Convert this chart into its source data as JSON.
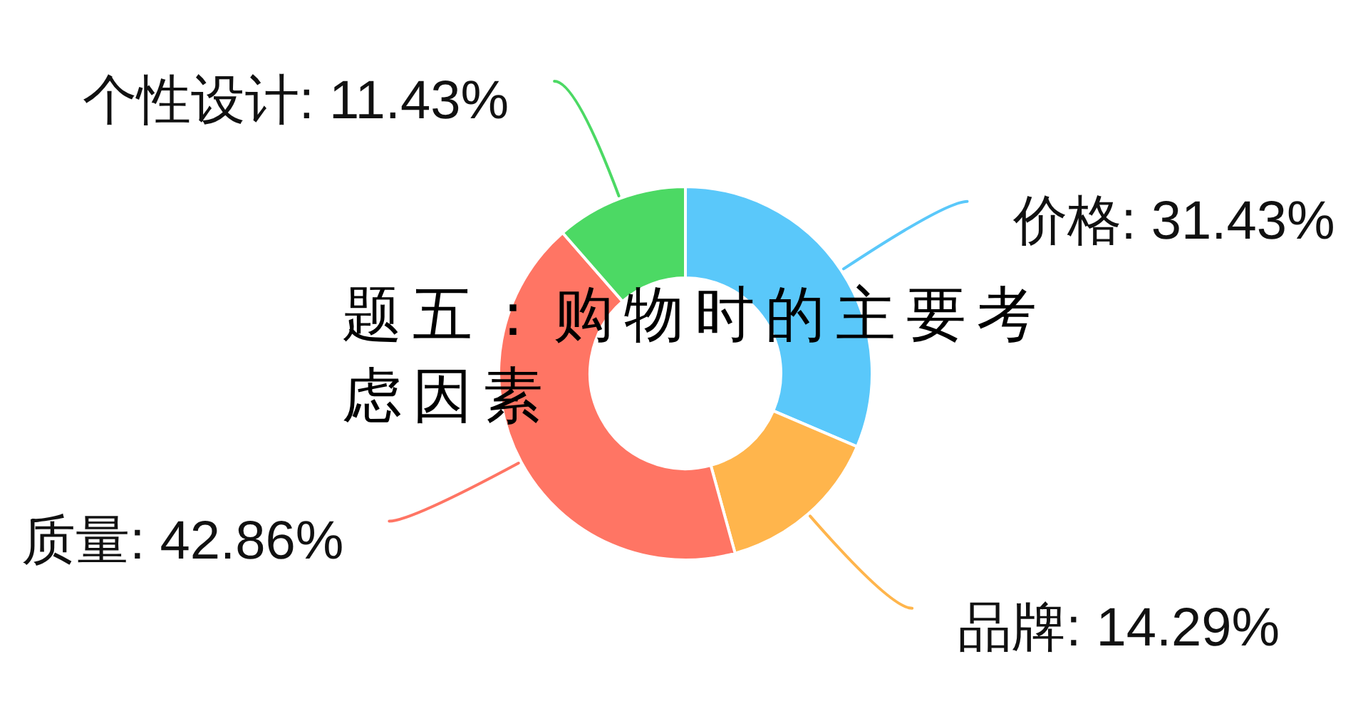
{
  "chart_data": {
    "type": "donut",
    "title": "题五：购物时的主要考虑因素",
    "categories": [
      "价格",
      "品牌",
      "质量",
      "个性设计"
    ],
    "values": [
      31.43,
      14.29,
      42.86,
      11.43
    ],
    "value_labels": [
      "31.43%",
      "14.29%",
      "42.86%",
      "11.43%"
    ],
    "colors": [
      "#5ac8fa",
      "#ffb54c",
      "#ff7564",
      "#4cd964"
    ]
  }
}
